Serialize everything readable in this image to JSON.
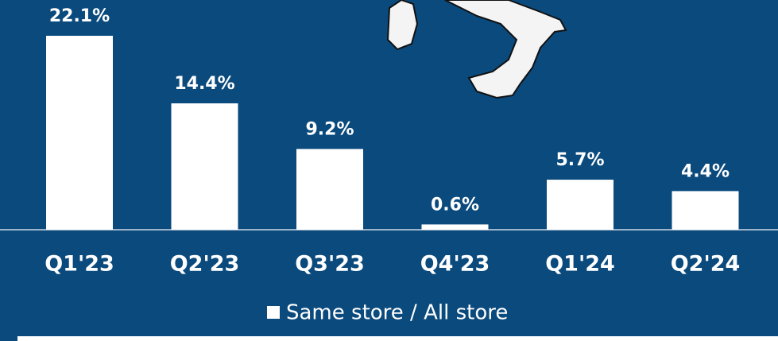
{
  "chart_data": {
    "type": "bar",
    "categories": [
      "Q1'23",
      "Q2'23",
      "Q3'23",
      "Q4'23",
      "Q1'24",
      "Q2'24"
    ],
    "series": [
      {
        "name": "Same store / All store",
        "color": "#ffffff",
        "values": [
          22.1,
          14.4,
          9.2,
          0.6,
          5.7,
          4.4
        ],
        "value_labels": [
          "22.1%",
          "14.4%",
          "9.2%",
          "0.6%",
          "5.7%",
          "4.4%"
        ]
      }
    ],
    "legend": "bottom"
  }
}
